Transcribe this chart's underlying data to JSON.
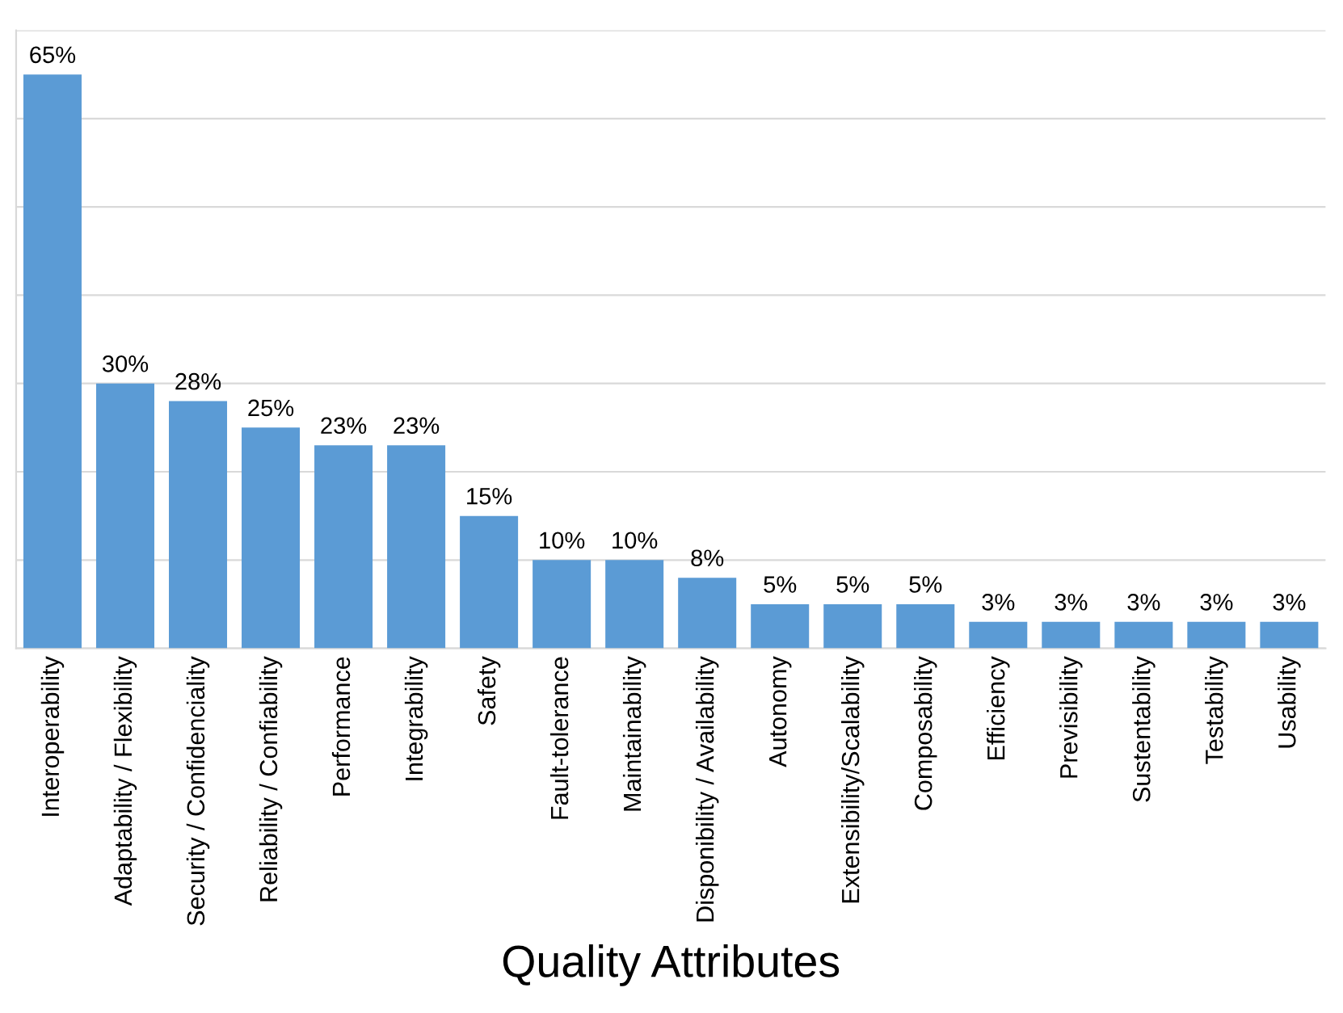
{
  "chart_data": {
    "type": "bar",
    "xlabel": "Quality Attributes",
    "categories": [
      "Interoperability",
      "Adaptability / Flexibility",
      "Security / Confidenciality",
      "Reliability / Confiability",
      "Performance",
      "Integrability",
      "Safety",
      "Fault-tolerance",
      "Maintainability",
      "Disponibility / Availability",
      "Autonomy",
      "Extensibility/Scalability",
      "Composability",
      "Efficiency",
      "Previsibility",
      "Sustentability",
      "Testability",
      "Usability"
    ],
    "values": [
      65,
      30,
      28,
      25,
      23,
      23,
      15,
      10,
      10,
      8,
      5,
      5,
      5,
      3,
      3,
      3,
      3,
      3
    ],
    "value_labels": [
      "65%",
      "30%",
      "28%",
      "25%",
      "23%",
      "23%",
      "15%",
      "10%",
      "10%",
      "8%",
      "5%",
      "5%",
      "5%",
      "3%",
      "3%",
      "3%",
      "3%",
      "3%"
    ],
    "color": "#5b9bd5",
    "ylim": [
      0,
      70
    ],
    "yticks": [
      {
        "value": 0,
        "label": null
      },
      {
        "value": 10,
        "label": null
      },
      {
        "value": 20,
        "label": null
      },
      {
        "value": 30,
        "label": null
      },
      {
        "value": 40,
        "label": null
      },
      {
        "value": 50,
        "label": null
      },
      {
        "value": 60,
        "label": null
      },
      {
        "value": 70,
        "label": null
      }
    ],
    "grid": "y",
    "tick_labels": "x",
    "legend": false
  }
}
